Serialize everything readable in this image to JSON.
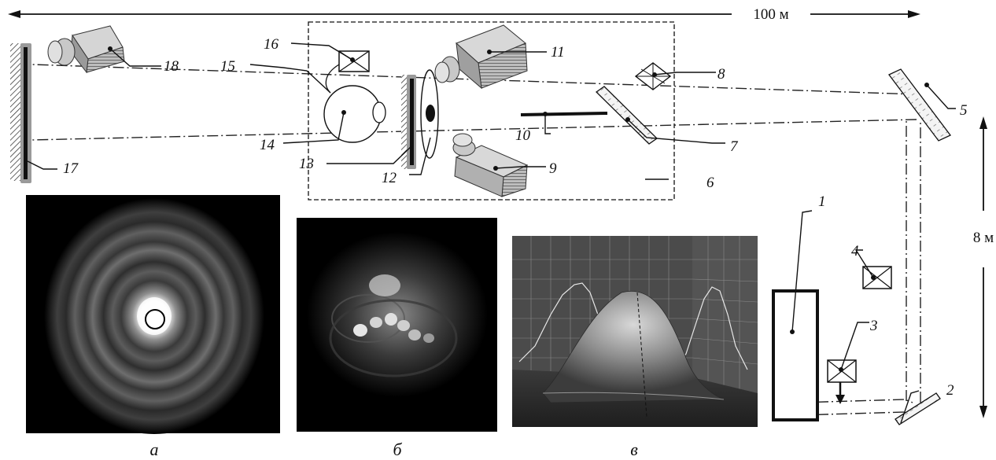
{
  "dimensions": {
    "length": "100 м",
    "height": "8 м"
  },
  "labels": {
    "l1": "1",
    "l2": "2",
    "l3": "3",
    "l4": "4",
    "l5": "5",
    "l6": "6",
    "l7": "7",
    "l8": "8",
    "l9": "9",
    "l10": "10",
    "l11": "11",
    "l12": "12",
    "l13": "13",
    "l14": "14",
    "l15": "15",
    "l16": "16",
    "l17": "17",
    "l18": "18"
  },
  "captions": {
    "a": "а",
    "b": "б",
    "c": "в"
  },
  "colors": {
    "ink": "#111111",
    "panel_bg": "#000000",
    "plot_bg": "#4a4a4a"
  }
}
